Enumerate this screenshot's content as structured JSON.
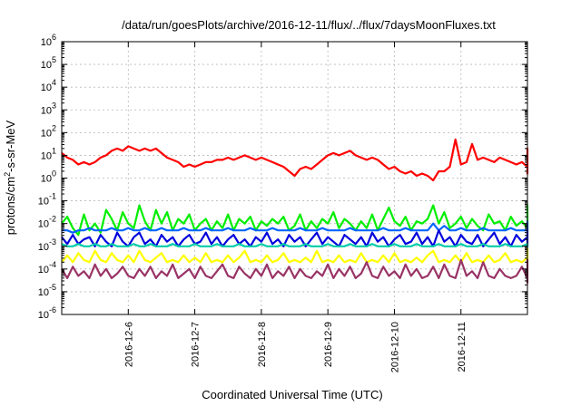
{
  "chart_data": {
    "type": "line",
    "title": "/data/run/goesPlots/archive/2016-12-11/flux/../flux/7daysMoonFluxes.txt",
    "xlabel": "Coordinated Universal Time (UTC)",
    "ylabel": {
      "base": "protons/cm",
      "sup": "2",
      "rest": "-s-sr-MeV"
    },
    "x_range": [
      "2016-12-05T00:00",
      "2016-12-11T23:59"
    ],
    "x_ticks": [
      "2016-12-6",
      "2016-12-7",
      "2016-12-8",
      "2016-12-9",
      "2016-12-10",
      "2016-12-11"
    ],
    "y_scale": "log",
    "ylim": [
      1e-06,
      1000000.0
    ],
    "y_tick_exponents": [
      -6,
      -5,
      -4,
      -3,
      -2,
      -1,
      0,
      1,
      2,
      3,
      4,
      5,
      6
    ],
    "grid": true,
    "legend": "none",
    "sample_interval_hours": 2,
    "series": [
      {
        "color": "#ff0000",
        "log10_values": [
          1.1,
          0.9,
          0.8,
          0.6,
          0.7,
          0.6,
          0.7,
          0.9,
          1.0,
          1.2,
          1.3,
          1.2,
          1.4,
          1.3,
          1.2,
          1.3,
          1.2,
          1.3,
          1.1,
          0.9,
          0.8,
          0.7,
          0.5,
          0.6,
          0.5,
          0.6,
          0.7,
          0.7,
          0.8,
          0.8,
          0.9,
          0.8,
          0.9,
          1.0,
          0.9,
          0.8,
          0.9,
          0.8,
          0.7,
          0.6,
          0.5,
          0.3,
          0.1,
          0.4,
          0.5,
          0.4,
          0.6,
          0.8,
          1.0,
          1.1,
          1.0,
          1.1,
          1.2,
          1.0,
          0.9,
          0.8,
          0.9,
          0.8,
          0.6,
          0.4,
          0.5,
          0.3,
          0.2,
          0.3,
          0.1,
          0.2,
          0.1,
          -0.1,
          0.3,
          0.3,
          0.5,
          1.7,
          0.6,
          0.7,
          1.5,
          0.8,
          0.9,
          0.8,
          0.7,
          0.9,
          0.8,
          0.7,
          0.6,
          0.7,
          0.5,
          0.6,
          0.5,
          0.4,
          0.6,
          0.8,
          0.6,
          0.7,
          0.9,
          1.0,
          0.8,
          1.0,
          0.9,
          1.0,
          0.9,
          0.8,
          0.6,
          0.5,
          0.4,
          0.3,
          0.5,
          0.4,
          0.3,
          0.4,
          0.5,
          0.4,
          0.3,
          0.2,
          0.4,
          0.3,
          0.5,
          0.6,
          0.7,
          0.8,
          0.7,
          0.8,
          0.9,
          0.7,
          0.5,
          0.9,
          1.0,
          0.8,
          0.5,
          0.6,
          0.4,
          0.5,
          0.3,
          0.7,
          0.6,
          0.6,
          0.7,
          0.6,
          1.2,
          0.8,
          1.2,
          0.9,
          1.3,
          0.9,
          1.0,
          1.0
        ]
      },
      {
        "color": "#00ee00",
        "log10_values": [
          -2.0,
          -1.7,
          -2.2,
          -2.5,
          -1.6,
          -2.3,
          -2.0,
          -2.4,
          -1.4,
          -1.8,
          -2.3,
          -1.5,
          -2.0,
          -2.2,
          -1.2,
          -1.9,
          -2.3,
          -1.4,
          -2.0,
          -1.5,
          -2.3,
          -1.8,
          -2.0,
          -1.6,
          -2.3,
          -2.0,
          -1.8,
          -2.3,
          -1.9,
          -2.2,
          -1.6,
          -2.3,
          -1.8,
          -2.0,
          -1.7,
          -2.3,
          -1.9,
          -2.1,
          -1.8,
          -2.0,
          -1.7,
          -2.3,
          -2.1,
          -1.6,
          -2.3,
          -1.9,
          -2.2,
          -1.8,
          -2.0,
          -1.5,
          -2.2,
          -1.8,
          -2.0,
          -2.3,
          -1.9,
          -2.2,
          -1.6,
          -2.3,
          -1.8,
          -1.3,
          -1.9,
          -2.1,
          -1.7,
          -2.3,
          -1.9,
          -2.0,
          -1.8,
          -1.2,
          -2.0,
          -1.5,
          -2.2,
          -2.0,
          -1.7,
          -2.2,
          -1.8,
          -2.1,
          -2.3,
          -1.6,
          -2.0,
          -1.9,
          -2.3,
          -1.7,
          -2.1,
          -1.9,
          -2.2,
          -1.7,
          -2.0,
          -2.3,
          -1.8,
          -2.2,
          -1.6,
          -1.3,
          -1.9,
          -2.2,
          -1.8,
          -2.0,
          -2.3,
          -1.7,
          -2.1,
          -1.9,
          -2.0,
          -1.5,
          -2.2,
          -1.9,
          -2.1,
          -1.8,
          -2.3,
          -1.6,
          -2.0,
          -1.9,
          -1.3,
          -1.8,
          -2.2,
          -1.6,
          -2.0,
          -2.3,
          -1.8,
          -1.4,
          -2.0,
          -2.2,
          -1.7,
          -1.9,
          -2.3,
          -1.6,
          -2.0,
          -1.4,
          -2.2,
          -1.9,
          -2.1,
          -1.6,
          -2.3,
          -1.9,
          -1.6,
          -2.0,
          -2.2,
          -1.2,
          -2.0,
          -1.6,
          -2.2,
          -1.9,
          -1.7,
          -2.0
        ]
      },
      {
        "color": "#0066ff",
        "log10_values": [
          -2.3,
          -2.3,
          -2.4,
          -2.3,
          -2.3,
          -2.2,
          -2.3,
          -2.3,
          -2.3,
          -2.2,
          -2.3,
          -2.3,
          -2.2,
          -2.3,
          -2.3,
          -2.2,
          -2.3,
          -2.3,
          -2.2,
          -2.3,
          -2.3,
          -2.3,
          -2.2,
          -2.3,
          -2.3,
          -2.3,
          -2.2,
          -2.3,
          -2.3,
          -2.3,
          -2.2,
          -2.3,
          -2.3,
          -2.3,
          -2.2,
          -2.3,
          -2.3,
          -2.3,
          -2.2,
          -2.3,
          -2.3,
          -2.3,
          -2.3,
          -2.2,
          -2.3,
          -2.3,
          -2.3,
          -2.2,
          -2.3,
          -2.3,
          -2.3,
          -2.3,
          -2.2,
          -2.3,
          -2.3,
          -2.3,
          -2.3,
          -2.3,
          -2.2,
          -2.3,
          -2.3,
          -2.3,
          -2.2,
          -2.3,
          -2.3,
          -2.3,
          -2.3,
          -2.0,
          -2.3,
          -2.1,
          -2.3,
          -2.3,
          -2.2,
          -2.3,
          -2.3,
          -2.3,
          -2.2,
          -2.3,
          -2.3,
          -2.3,
          -2.3,
          -2.2,
          -2.3,
          -2.3,
          -2.3,
          -2.3,
          -2.2,
          -2.3,
          -2.3,
          -2.3,
          -2.2,
          -1.9,
          -2.2,
          -2.3,
          -2.3,
          -2.3,
          -2.2,
          -2.3,
          -2.3,
          -2.3,
          -2.3,
          -2.2,
          -2.3,
          -2.3,
          -2.3,
          -2.3,
          -2.2,
          -2.3,
          -2.3,
          -2.3,
          -1.9,
          -2.2,
          -2.3,
          -2.3,
          -2.3,
          -2.2,
          -2.3,
          -2.3,
          -2.3,
          -2.3,
          -2.2,
          -2.3,
          -2.3,
          -2.3,
          -2.3,
          -2.2,
          -2.3,
          -2.3,
          -2.3,
          -2.2,
          -2.3,
          -2.3,
          -2.3,
          -2.3,
          -2.2,
          -2.0,
          -2.2,
          -2.3,
          -2.3,
          -2.3,
          -2.2,
          -2.3
        ]
      },
      {
        "color": "#0000dd",
        "log10_values": [
          -2.6,
          -2.9,
          -2.5,
          -2.9,
          -2.7,
          -2.6,
          -3.0,
          -2.5,
          -2.8,
          -3.0,
          -2.4,
          -2.8,
          -3.0,
          -2.6,
          -2.4,
          -2.9,
          -2.7,
          -3.0,
          -2.5,
          -2.8,
          -2.6,
          -3.0,
          -2.7,
          -2.5,
          -2.9,
          -2.8,
          -2.4,
          -2.9,
          -2.6,
          -3.0,
          -2.7,
          -2.5,
          -2.9,
          -2.7,
          -3.0,
          -2.6,
          -2.8,
          -2.4,
          -2.9,
          -2.7,
          -3.0,
          -2.5,
          -2.8,
          -2.6,
          -3.0,
          -2.7,
          -2.4,
          -2.9,
          -2.6,
          -2.8,
          -3.0,
          -2.5,
          -2.7,
          -2.9,
          -2.6,
          -3.0,
          -2.4,
          -2.8,
          -2.6,
          -3.0,
          -2.7,
          -2.5,
          -2.9,
          -2.8,
          -2.4,
          -2.9,
          -2.6,
          -3.0,
          -2.3,
          -2.8,
          -2.6,
          -3.0,
          -2.5,
          -2.8,
          -2.9,
          -2.5,
          -3.0,
          -2.7,
          -2.4,
          -2.9,
          -2.6,
          -3.0,
          -2.5,
          -2.8,
          -2.6,
          -3.0,
          -2.7,
          -2.5,
          -2.9,
          -2.7,
          -2.3,
          -2.9,
          -2.6,
          -3.0,
          -2.5,
          -2.8,
          -2.6,
          -3.0,
          -2.7,
          -2.5,
          -2.9,
          -2.6,
          -3.0,
          -2.5,
          -2.8,
          -2.9,
          -2.5,
          -2.7,
          -3.0,
          -2.6,
          -2.3,
          -2.8,
          -3.0,
          -2.6,
          -2.9,
          -2.7,
          -2.5,
          -3.0,
          -2.6,
          -2.8,
          -2.4,
          -2.9,
          -2.7,
          -3.0,
          -2.5,
          -2.8,
          -2.6,
          -3.0,
          -2.7,
          -2.9,
          -2.5,
          -3.0,
          -2.8,
          -2.6,
          -3.0,
          -2.7,
          -2.9,
          -2.6,
          -3.0,
          -2.8,
          -2.9,
          -2.6
        ]
      },
      {
        "color": "#00ccaa",
        "log10_values": [
          -2.9,
          -3.0,
          -3.0,
          -2.9,
          -3.0,
          -3.0,
          -2.9,
          -3.0,
          -3.0,
          -2.9,
          -3.0,
          -3.0,
          -3.0,
          -2.9,
          -3.0,
          -3.0,
          -2.9,
          -3.0,
          -3.0,
          -3.0,
          -2.9,
          -3.0,
          -3.0,
          -3.0,
          -2.9,
          -3.0,
          -3.0,
          -3.0,
          -2.9,
          -3.0,
          -3.0,
          -3.0,
          -2.9,
          -3.0,
          -3.0,
          -3.0,
          -2.9,
          -3.0,
          -3.0,
          -3.0,
          -2.9,
          -3.0,
          -3.0,
          -3.0,
          -2.9,
          -3.0,
          -3.0,
          -3.0,
          -2.9,
          -3.0,
          -3.0,
          -3.0,
          -2.9,
          -3.0,
          -3.0,
          -3.0,
          -2.9,
          -3.0,
          -3.0,
          -3.0,
          -2.9,
          -3.0,
          -3.0,
          -3.0,
          -2.9,
          -3.0,
          -3.0,
          -3.0,
          -2.9,
          -3.0,
          -3.0,
          -3.0,
          -2.9,
          -3.0,
          -3.0,
          -3.0,
          -2.9,
          -3.0,
          -3.0,
          -3.0,
          -2.9,
          -3.0,
          -3.0,
          -3.0,
          -2.9,
          -3.0,
          -3.0,
          -3.0,
          -2.9,
          -3.0,
          -3.0,
          -3.0,
          -2.9,
          -3.0,
          -3.0,
          -3.0,
          -2.9,
          -3.0,
          -3.0,
          -3.0,
          -2.9,
          -3.0,
          -3.0,
          -3.0,
          -2.9,
          -3.0,
          -3.0,
          -3.0,
          -2.9,
          -3.0,
          -3.0,
          -3.0,
          -2.9,
          -3.0,
          -3.0,
          -3.0,
          -2.9,
          -3.0,
          -3.0,
          -3.0,
          -2.9,
          -3.0,
          -3.0,
          -3.0,
          -2.9,
          -3.0,
          -3.0,
          -3.0,
          -2.9,
          -3.0,
          -3.0,
          -3.0,
          -2.9,
          -3.0,
          -3.0,
          -3.0,
          -2.9,
          -3.0,
          -3.0,
          -3.0,
          -2.9,
          -3.0
        ]
      },
      {
        "color": "#ffff00",
        "log10_values": [
          -3.7,
          -3.4,
          -3.7,
          -3.3,
          -3.6,
          -3.7,
          -3.2,
          -3.6,
          -3.7,
          -3.3,
          -3.6,
          -3.7,
          -3.4,
          -3.7,
          -3.2,
          -3.6,
          -3.7,
          -3.5,
          -3.3,
          -3.7,
          -3.6,
          -3.7,
          -3.4,
          -3.7,
          -3.5,
          -3.7,
          -3.3,
          -3.7,
          -3.6,
          -3.7,
          -3.4,
          -3.7,
          -3.5,
          -3.2,
          -3.7,
          -3.6,
          -3.7,
          -3.4,
          -3.7,
          -3.6,
          -3.3,
          -3.7,
          -3.6,
          -3.7,
          -3.5,
          -3.7,
          -3.2,
          -3.7,
          -3.6,
          -3.7,
          -3.4,
          -3.7,
          -3.6,
          -3.7,
          -3.3,
          -3.7,
          -3.6,
          -3.7,
          -3.4,
          -3.7,
          -3.3,
          -3.7,
          -3.6,
          -3.7,
          -3.5,
          -3.7,
          -3.4,
          -3.2,
          -3.7,
          -3.6,
          -3.7,
          -3.4,
          -3.7,
          -3.3,
          -3.7,
          -3.6,
          -3.7,
          -3.4,
          -3.7,
          -3.6,
          -3.3,
          -3.7,
          -3.6,
          -3.7,
          -3.5,
          -3.7,
          -3.4,
          -3.7,
          -3.6,
          -3.3,
          -3.7,
          -3.2,
          -3.6,
          -3.7,
          -3.4,
          -3.7,
          -3.6,
          -3.7,
          -3.3,
          -3.7,
          -3.6,
          -3.5,
          -3.7,
          -3.4,
          -3.7,
          -3.6,
          -3.7,
          -3.3,
          -3.7,
          -3.6,
          -3.1,
          -3.6,
          -3.7,
          -3.4,
          -3.7,
          -3.6,
          -3.3,
          -3.7,
          -3.6,
          -3.7,
          -3.4,
          -3.7,
          -3.2,
          -3.7,
          -3.6,
          -3.7,
          -3.4,
          -3.7,
          -3.5,
          -3.7,
          -3.3,
          -3.7,
          -3.6,
          -3.7,
          -3.4,
          -3.7,
          -3.6,
          -3.7,
          -3.4,
          -3.7,
          -3.6,
          -3.7,
          -3.6,
          -3.7
        ]
      },
      {
        "color": "#993366",
        "log10_values": [
          -4.0,
          -4.4,
          -3.9,
          -4.3,
          -4.1,
          -4.4,
          -3.8,
          -4.3,
          -4.0,
          -4.4,
          -4.2,
          -3.9,
          -4.3,
          -4.4,
          -4.0,
          -4.3,
          -3.9,
          -4.4,
          -4.1,
          -4.3,
          -3.8,
          -4.4,
          -4.2,
          -4.0,
          -4.4,
          -3.9,
          -4.3,
          -4.4,
          -4.1,
          -3.8,
          -4.3,
          -4.4,
          -3.9,
          -4.2,
          -4.4,
          -4.0,
          -4.3,
          -3.8,
          -4.4,
          -4.1,
          -4.3,
          -3.9,
          -4.4,
          -4.0,
          -4.3,
          -4.4,
          -4.1,
          -4.3,
          -3.8,
          -4.4,
          -4.0,
          -4.3,
          -3.9,
          -4.4,
          -4.2,
          -3.7,
          -4.3,
          -4.4,
          -3.9,
          -4.3,
          -4.1,
          -4.4,
          -3.8,
          -4.3,
          -4.0,
          -4.4,
          -4.3,
          -3.9,
          -4.4,
          -3.8,
          -4.3,
          -4.4,
          -3.6,
          -4.3,
          -4.1,
          -4.4,
          -3.7,
          -4.3,
          -4.4,
          -4.0,
          -4.3,
          -4.4,
          -4.3,
          -3.9,
          -4.4,
          -4.3,
          -4.0,
          -4.4,
          -4.3,
          -4.4,
          -3.6,
          -4.6,
          -3.9,
          -4.3,
          -4.4,
          -4.0,
          -4.3,
          -3.8,
          -4.4,
          -4.3,
          -4.1,
          -4.4,
          -3.9,
          -4.3,
          -4.4,
          -4.0,
          -4.3,
          -3.8,
          -4.4,
          -4.3,
          -3.7,
          -4.4,
          -4.1,
          -4.3,
          -3.9,
          -4.4,
          -4.3,
          -4.0,
          -4.4,
          -3.8,
          -4.3,
          -4.4,
          -4.1,
          -4.3,
          -3.9,
          -4.4,
          -4.0,
          -4.3,
          -3.8,
          -4.4,
          -4.3,
          -4.0,
          -4.4,
          -4.3,
          -3.7,
          -4.4,
          -4.1,
          -4.3,
          -4.4,
          -4.3
        ]
      }
    ]
  }
}
